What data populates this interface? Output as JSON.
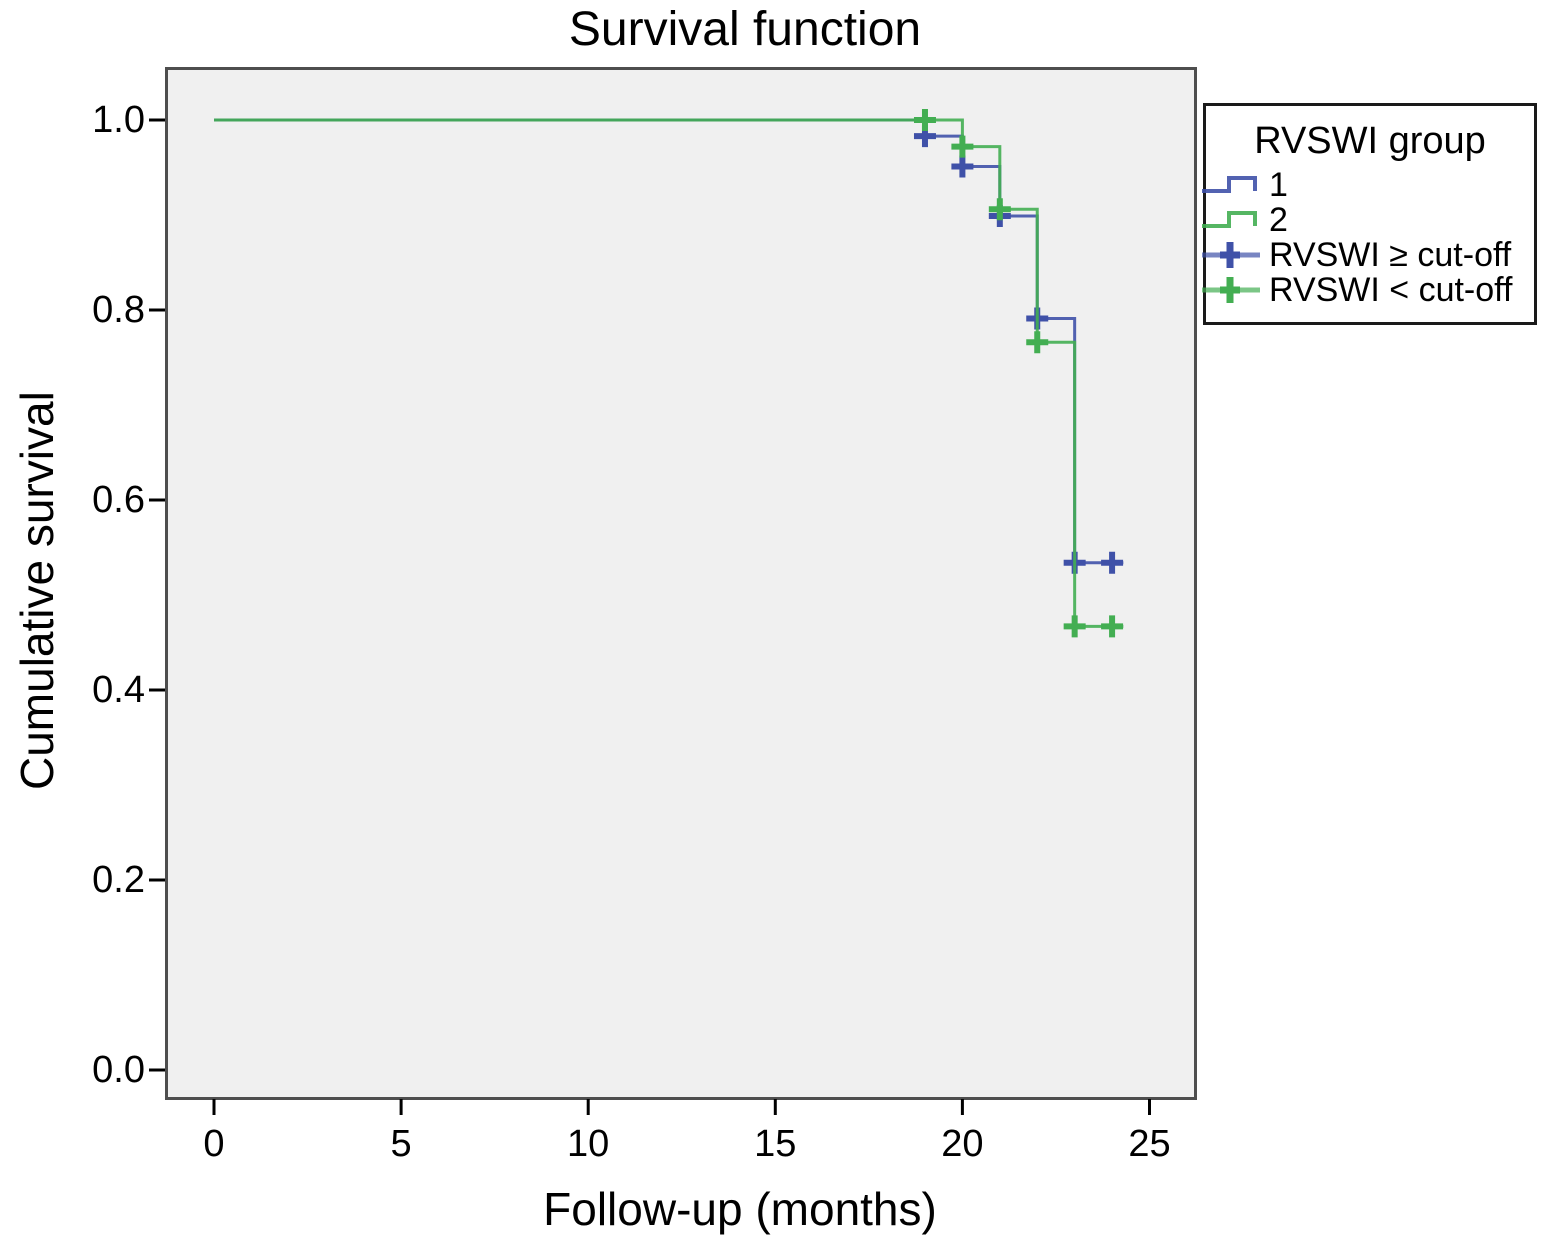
{
  "chart_data": {
    "type": "line",
    "subtype": "kaplan-meier-step-survival",
    "title": "Survival function",
    "xlabel": "Follow-up (months)",
    "ylabel": "Cumulative survival",
    "xlim": [
      0,
      26.3
    ],
    "ylim": [
      0.0,
      1.05
    ],
    "grid": false,
    "plot_background": "#f0f0f0",
    "legend_position": "outside-top-right",
    "x_ticks": [
      0,
      5,
      10,
      15,
      20,
      25
    ],
    "x_tick_labels": [
      "0",
      "5",
      "10",
      "15",
      "20",
      "25"
    ],
    "y_ticks": [
      0.0,
      0.2,
      0.4,
      0.6,
      0.8,
      1.0
    ],
    "y_tick_labels": [
      "0.0",
      "0.2",
      "0.4",
      "0.6",
      "0.8",
      "1.0"
    ],
    "series": [
      {
        "name": "1",
        "censor_legend": "RVSWI ≥ cut-off",
        "color": "#3f51a8",
        "start": [
          0,
          1.0
        ],
        "events": [
          [
            19,
            0.983
          ],
          [
            20,
            0.951
          ],
          [
            21,
            0.899
          ],
          [
            22,
            0.791
          ],
          [
            23,
            0.534
          ]
        ],
        "censor_times": [
          19,
          20,
          21,
          22,
          23,
          24
        ],
        "end_time": 24.3
      },
      {
        "name": "2",
        "censor_legend": "RVSWI < cut-off",
        "color": "#43ae52",
        "start": [
          0,
          1.0
        ],
        "events": [
          [
            20,
            0.972
          ],
          [
            21,
            0.906
          ],
          [
            22,
            0.766
          ],
          [
            23,
            0.467
          ]
        ],
        "censor_times": [
          19,
          20,
          21,
          22,
          23,
          24
        ],
        "end_time": 24.3
      }
    ]
  },
  "legend": {
    "title": "RVSWI group",
    "entries": [
      {
        "label": "1",
        "glyph": "step",
        "color": "#3f51a8"
      },
      {
        "label": "2",
        "glyph": "step",
        "color": "#43ae52"
      },
      {
        "label": "RVSWI ≥ cut-off",
        "glyph": "censor-cross",
        "color": "#3f51a8"
      },
      {
        "label": "RVSWI < cut-off",
        "glyph": "censor-cross",
        "color": "#43ae52"
      }
    ]
  }
}
